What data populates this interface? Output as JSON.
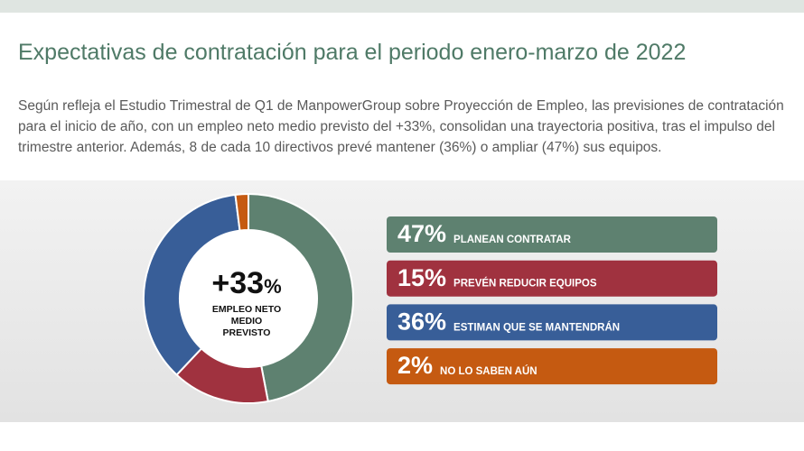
{
  "chart_data": {
    "type": "pie",
    "title": "Expectativas de contratación para el periodo enero-marzo de 2022",
    "subtitle": "Según refleja el Estudio Trimestral de Q1 de ManpowerGroup sobre Proyección de Empleo, las previsiones de contratación para el inicio de año, con un empleo neto medio previsto del +33%, consolidan una trayectoria positiva, tras el impulso del trimestre anterior. Además, 8 de cada 10 directivos prevé mantener (36%) o ampliar (47%) sus equipos.",
    "center_value": "+33",
    "center_unit": "%",
    "center_label": "EMPLEO NETO MEDIO PREVISTO",
    "categories": [
      "PLANEAN CONTRATAR",
      "PREVÉN REDUCIR EQUIPOS",
      "ESTIMAN QUE SE MANTENDRÁN",
      "NO LO SABEN AÚN"
    ],
    "values": [
      47,
      15,
      36,
      2
    ],
    "value_labels": [
      "47%",
      "15%",
      "36%",
      "2%"
    ],
    "colors": [
      "#5e8170",
      "#a0323f",
      "#385e98",
      "#c55a11"
    ]
  }
}
